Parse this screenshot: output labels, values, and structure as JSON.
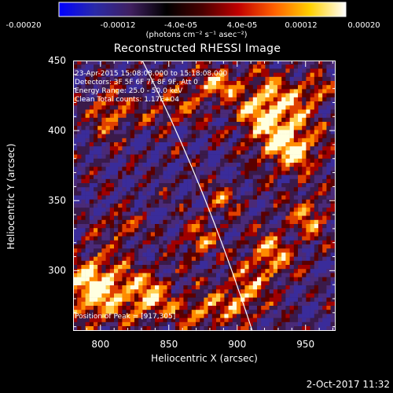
{
  "colorbar": {
    "ticks": [
      "-0.00020",
      "-0.00012",
      "-4.0e-05",
      "4.0e-05",
      "0.00012",
      "0.00020"
    ],
    "units": "(photons cm⁻² s⁻¹ asec⁻²)",
    "stops": [
      "#0000ff",
      "#2a2aa8",
      "#402060",
      "#000000",
      "#4a0000",
      "#c00000",
      "#ff6000",
      "#ffd000",
      "#ffffff"
    ]
  },
  "plot": {
    "title": "Reconstructed RHESSI Image",
    "info_lines": [
      "23-Apr-2015 15:08:08.000 to 15:18:08.000",
      "Detectors: 3F 5F 6F 7F 8F 9F, Att 0",
      "Energy Range: 25.0 - 50.0 keV",
      "Clean     Total counts: 1.17E+04"
    ],
    "peak_label": "Position of Peak = [917,305]",
    "x_ticks": [
      "800",
      "850",
      "900",
      "950"
    ],
    "y_ticks": [
      "450",
      "400",
      "350",
      "300"
    ],
    "xlabel": "Heliocentric X (arcsec)",
    "ylabel": "Heliocentric Y (arcsec)",
    "x_range": [
      780,
      972
    ],
    "y_range": [
      257,
      450
    ],
    "limb_color": "#ffffff"
  },
  "timestamp": "2-Oct-2017 11:32"
}
